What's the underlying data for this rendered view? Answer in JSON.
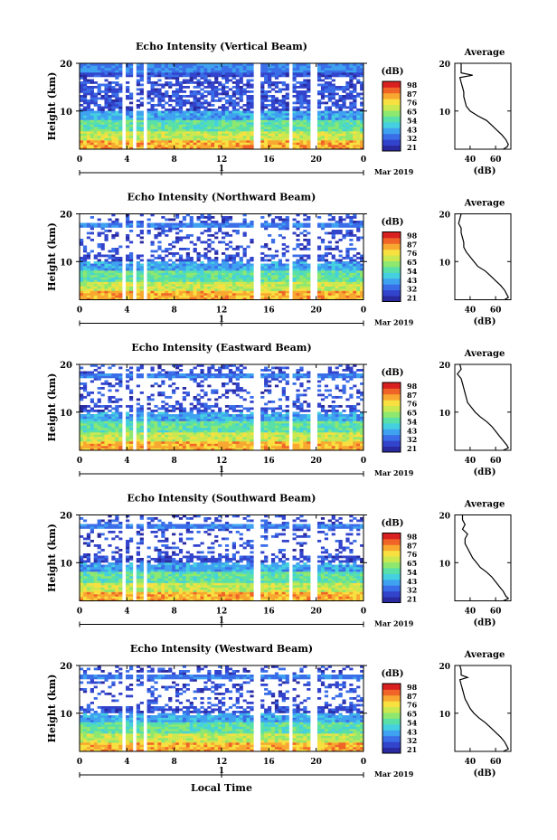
{
  "figure": {
    "x_title": "Local Time",
    "date_label": "Mar 2019",
    "day_label": "1"
  },
  "colorbar": {
    "unit": "(dB)",
    "ticks_vertical": [
      "98",
      "87",
      "76",
      "65",
      "54",
      "43",
      "32",
      "21"
    ],
    "ticks_other": [
      "98",
      "87",
      "76",
      "65",
      "54",
      "43",
      "32",
      "21"
    ],
    "colors": [
      "#2a2aa0",
      "#3344cc",
      "#3a6ee8",
      "#3fa2f0",
      "#45d0e0",
      "#58e0a8",
      "#8ee870",
      "#cce850",
      "#f8e040",
      "#f8a830",
      "#f06428",
      "#d82020"
    ]
  },
  "chart_data": [
    {
      "type": "heatmap",
      "title": "Echo Intensity (Vertical Beam)",
      "ylabel": "Height (km)",
      "xlabel": "Local Time",
      "x_ticks": [
        "0",
        "4",
        "8",
        "12",
        "16",
        "20",
        "0"
      ],
      "y_ticks": [
        "20",
        "10"
      ],
      "xlim": [
        0,
        24
      ],
      "ylim": [
        2,
        20
      ],
      "colorbar_label": "(dB)",
      "data_gaps_hours": [
        [
          3.5,
          3.9
        ],
        [
          4.5,
          4.8
        ],
        [
          5.3,
          5.6
        ],
        [
          14.6,
          15.2
        ],
        [
          17.6,
          17.9
        ],
        [
          19.6,
          20.0
        ]
      ],
      "profile": {
        "title": "Average",
        "xlabel": "(dB)",
        "x_ticks": [
          "40",
          "60"
        ],
        "xlim": [
          28,
          72
        ],
        "y_ticks": [
          "20",
          "10"
        ],
        "heights_km": [
          20,
          19,
          18,
          17.5,
          17,
          16,
          15,
          14,
          13,
          12,
          11,
          10,
          9,
          8,
          7,
          6,
          5,
          4,
          3,
          2.5,
          2
        ],
        "values_db": [
          33,
          33,
          33,
          42,
          32,
          33,
          34,
          35,
          35,
          36,
          37,
          40,
          46,
          53,
          57,
          61,
          65,
          68,
          70,
          69,
          66
        ]
      }
    },
    {
      "type": "heatmap",
      "title": "Echo Intensity (Northward Beam)",
      "ylabel": "Height (km)",
      "xlabel": "Local Time",
      "x_ticks": [
        "0",
        "4",
        "8",
        "12",
        "16",
        "20",
        "0"
      ],
      "y_ticks": [
        "20",
        "10"
      ],
      "xlim": [
        0,
        24
      ],
      "ylim": [
        2,
        20
      ],
      "colorbar_label": "(dB)",
      "data_gaps_hours": [
        [
          3.5,
          3.9
        ],
        [
          4.5,
          4.8
        ],
        [
          5.3,
          5.6
        ],
        [
          14.6,
          15.2
        ],
        [
          17.6,
          17.9
        ],
        [
          19.6,
          20.0
        ]
      ],
      "profile": {
        "title": "Average",
        "xlabel": "(dB)",
        "x_ticks": [
          "40",
          "60"
        ],
        "xlim": [
          28,
          72
        ],
        "y_ticks": [
          "20",
          "10"
        ],
        "heights_km": [
          20,
          19,
          18,
          17,
          16,
          15,
          14,
          13,
          12,
          11,
          10,
          9,
          8,
          7,
          6,
          5,
          4,
          3,
          2.5,
          2
        ],
        "values_db": [
          33,
          32,
          31,
          33,
          33,
          34,
          35,
          35,
          37,
          40,
          43,
          46,
          52,
          56,
          60,
          64,
          67,
          69,
          70,
          67
        ]
      }
    },
    {
      "type": "heatmap",
      "title": "Echo Intensity (Eastward Beam)",
      "ylabel": "Height (km)",
      "xlabel": "Local Time",
      "x_ticks": [
        "0",
        "4",
        "8",
        "12",
        "16",
        "20",
        "0"
      ],
      "y_ticks": [
        "20",
        "10"
      ],
      "xlim": [
        0,
        24
      ],
      "ylim": [
        2,
        20
      ],
      "colorbar_label": "(dB)",
      "data_gaps_hours": [
        [
          3.5,
          3.9
        ],
        [
          4.5,
          4.8
        ],
        [
          5.3,
          5.6
        ],
        [
          14.6,
          15.2
        ],
        [
          17.6,
          17.9
        ],
        [
          19.6,
          20.0
        ]
      ],
      "profile": {
        "title": "Average",
        "xlabel": "(dB)",
        "x_ticks": [
          "40",
          "60"
        ],
        "xlim": [
          28,
          72
        ],
        "y_ticks": [
          "20",
          "10"
        ],
        "heights_km": [
          20,
          19,
          18,
          17,
          16,
          15,
          14,
          13,
          12,
          11,
          10,
          9,
          8,
          7,
          6,
          5,
          4,
          3,
          2.5,
          2
        ],
        "values_db": [
          32,
          33,
          30,
          33,
          34,
          35,
          36,
          37,
          38,
          41,
          44,
          48,
          53,
          57,
          60,
          63,
          66,
          69,
          70,
          66
        ]
      }
    },
    {
      "type": "heatmap",
      "title": "Echo Intensity (Southward Beam)",
      "ylabel": "Height (km)",
      "xlabel": "Local Time",
      "x_ticks": [
        "0",
        "4",
        "8",
        "12",
        "16",
        "20",
        "0"
      ],
      "y_ticks": [
        "20",
        "10"
      ],
      "xlim": [
        0,
        24
      ],
      "ylim": [
        2,
        20
      ],
      "colorbar_label": "(dB)",
      "data_gaps_hours": [
        [
          3.5,
          3.9
        ],
        [
          4.5,
          4.8
        ],
        [
          5.3,
          5.6
        ],
        [
          14.6,
          15.2
        ],
        [
          17.6,
          17.9
        ],
        [
          19.6,
          20.0
        ]
      ],
      "profile": {
        "title": "Average",
        "xlabel": "(dB)",
        "x_ticks": [
          "40",
          "60"
        ],
        "xlim": [
          28,
          72
        ],
        "y_ticks": [
          "20",
          "10"
        ],
        "heights_km": [
          20,
          19,
          18,
          17,
          16,
          15,
          14,
          13,
          12,
          11,
          10,
          9,
          8,
          7,
          6,
          5,
          4,
          3,
          2.5,
          2
        ],
        "values_db": [
          34,
          34,
          36,
          34,
          38,
          36,
          36,
          38,
          40,
          42,
          45,
          48,
          53,
          57,
          60,
          63,
          66,
          68,
          70,
          66
        ]
      }
    },
    {
      "type": "heatmap",
      "title": "Echo Intensity (Westward Beam)",
      "ylabel": "Height (km)",
      "xlabel": "Local Time",
      "x_ticks": [
        "0",
        "4",
        "8",
        "12",
        "16",
        "20",
        "0"
      ],
      "y_ticks": [
        "20",
        "10"
      ],
      "xlim": [
        0,
        24
      ],
      "ylim": [
        2,
        20
      ],
      "colorbar_label": "(dB)",
      "data_gaps_hours": [
        [
          3.5,
          3.9
        ],
        [
          4.5,
          4.8
        ],
        [
          5.3,
          5.6
        ],
        [
          14.6,
          15.2
        ],
        [
          17.6,
          17.9
        ],
        [
          19.6,
          20.0
        ]
      ],
      "profile": {
        "title": "Average",
        "xlabel": "(dB)",
        "x_ticks": [
          "40",
          "60"
        ],
        "xlim": [
          28,
          72
        ],
        "y_ticks": [
          "20",
          "10"
        ],
        "heights_km": [
          20,
          19,
          18,
          17.5,
          17,
          16,
          15,
          14,
          13,
          12,
          11,
          10,
          9,
          8,
          7,
          6,
          5,
          4,
          3,
          2.5,
          2
        ],
        "values_db": [
          32,
          33,
          33,
          38,
          32,
          33,
          34,
          35,
          36,
          38,
          40,
          43,
          47,
          52,
          56,
          60,
          64,
          67,
          69,
          70,
          66
        ]
      }
    }
  ]
}
